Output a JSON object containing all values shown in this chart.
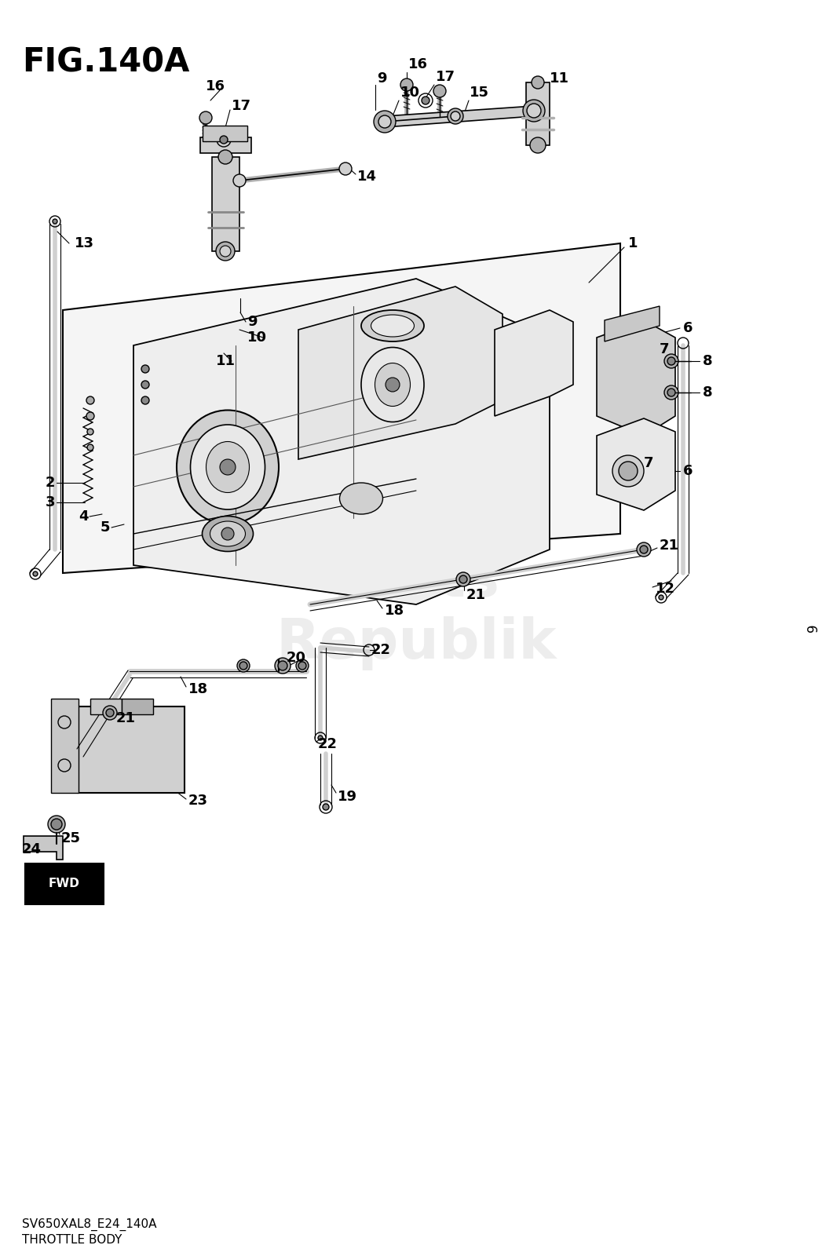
{
  "title": "FIG.140A",
  "footer_line1": "SV650XAL8_E24_140A",
  "footer_line2": "THROTTLE BODY",
  "background_color": "#ffffff",
  "title_fontsize": 30,
  "label_fontsize": 13,
  "footer_fontsize": 11,
  "page_num": "9",
  "fig_width": 10.52,
  "fig_height": 16.0,
  "dpi": 100
}
